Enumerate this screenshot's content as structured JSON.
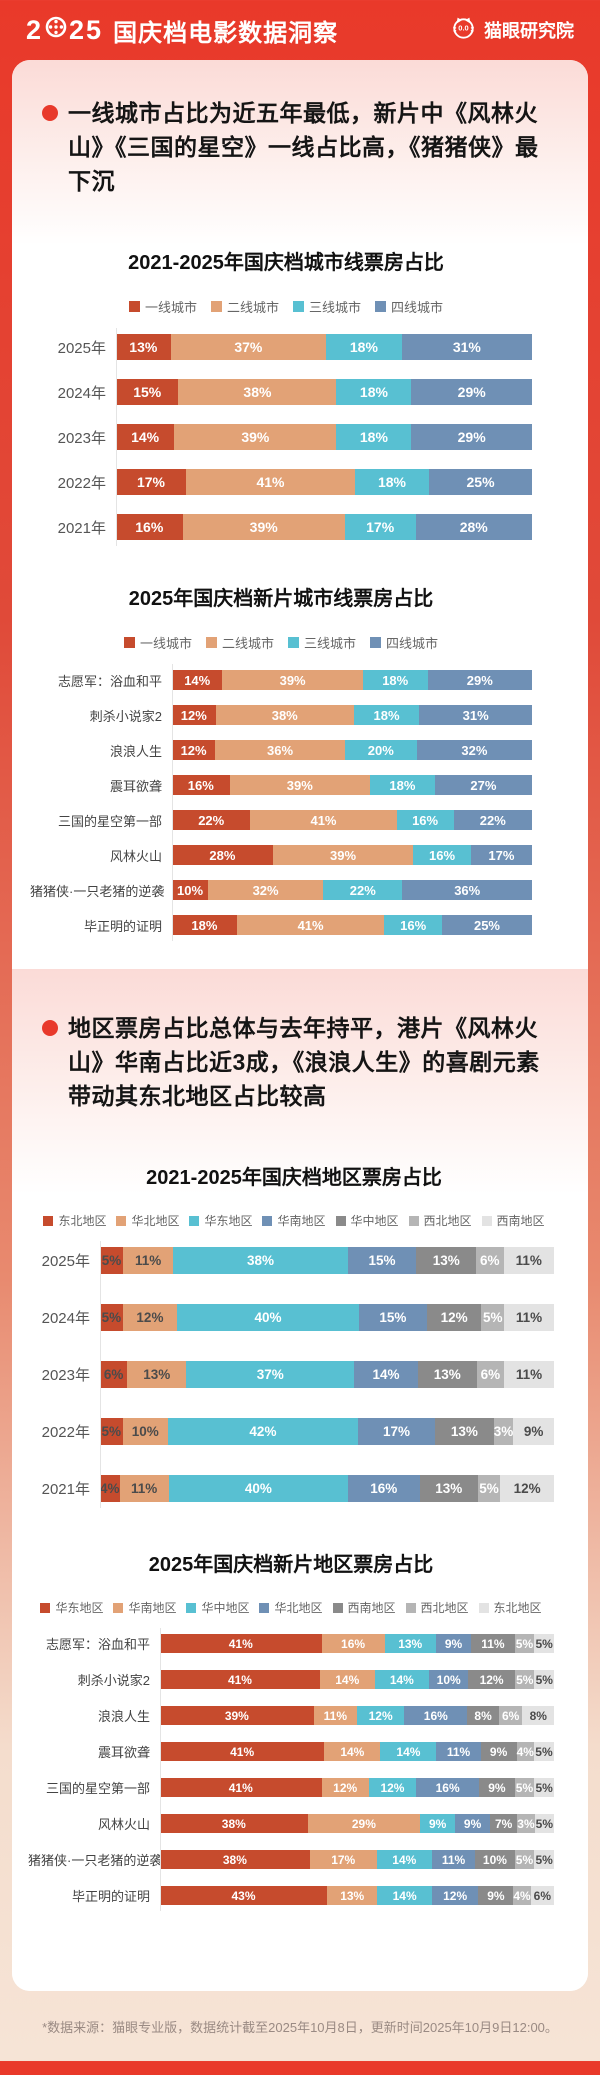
{
  "header": {
    "year_left": "2",
    "year_right": "25",
    "title": "国庆档电影数据洞察",
    "brand": "猫眼研究院",
    "accent_color": "#e9392a"
  },
  "sections": [
    {
      "bullet": "一线城市占比为近五年最低，新片中《风林火山》《三国的星空》一线占比高，《猪猪侠》最下沉"
    },
    {
      "bullet": "地区票房占比总体与去年持平，港片《风林火山》华南占比近3成，《浪浪人生》的喜剧元素带动其东北地区占比较高"
    }
  ],
  "footer": {
    "note": "*数据来源：猫眼专业版，数据统计截至2025年10月8日，更新时间2025年10月9日12:00。"
  },
  "chart_data": [
    {
      "type": "bar",
      "stacked": true,
      "orientation": "horizontal",
      "title": "2021-2025年国庆档城市线票房占比",
      "unit": "%",
      "legend_position": "top",
      "categories": [
        "2025年",
        "2024年",
        "2023年",
        "2022年",
        "2021年"
      ],
      "series": [
        {
          "name": "一线城市",
          "values": [
            13,
            15,
            14,
            17,
            16
          ]
        },
        {
          "name": "二线城市",
          "values": [
            37,
            38,
            39,
            41,
            39
          ]
        },
        {
          "name": "三线城市",
          "values": [
            18,
            18,
            18,
            18,
            17
          ]
        },
        {
          "name": "四线城市",
          "values": [
            31,
            29,
            29,
            25,
            28
          ]
        }
      ],
      "colors": [
        "#c64b2d",
        "#e2a276",
        "#58c0d2",
        "#6f90b5"
      ],
      "label_colors": [
        "#ffffff",
        "#ffffff",
        "#ffffff",
        "#ffffff"
      ]
    },
    {
      "type": "bar",
      "stacked": true,
      "orientation": "horizontal",
      "title": "2025年国庆档新片城市线票房占比",
      "unit": "%",
      "legend_position": "top",
      "categories": [
        "志愿军：浴血和平",
        "刺杀小说家2",
        "浪浪人生",
        "震耳欲聋",
        "三国的星空第一部",
        "风林火山",
        "猪猪侠·一只老猪的逆袭",
        "毕正明的证明"
      ],
      "series": [
        {
          "name": "一线城市",
          "values": [
            14,
            12,
            12,
            16,
            22,
            28,
            10,
            18
          ]
        },
        {
          "name": "二线城市",
          "values": [
            39,
            38,
            36,
            39,
            41,
            39,
            32,
            41
          ]
        },
        {
          "name": "三线城市",
          "values": [
            18,
            18,
            20,
            18,
            16,
            16,
            22,
            16
          ]
        },
        {
          "name": "四线城市",
          "values": [
            29,
            31,
            32,
            27,
            22,
            17,
            36,
            25
          ]
        }
      ],
      "colors": [
        "#c64b2d",
        "#e2a276",
        "#58c0d2",
        "#6f90b5"
      ],
      "label_colors": [
        "#ffffff",
        "#ffffff",
        "#ffffff",
        "#ffffff"
      ]
    },
    {
      "type": "bar",
      "stacked": true,
      "orientation": "horizontal",
      "title": "2021-2025年国庆档地区票房占比",
      "unit": "%",
      "legend_position": "top",
      "categories": [
        "2025年",
        "2024年",
        "2023年",
        "2022年",
        "2021年"
      ],
      "series": [
        {
          "name": "东北地区",
          "values": [
            5,
            5,
            6,
            5,
            4
          ]
        },
        {
          "name": "华北地区",
          "values": [
            11,
            12,
            13,
            10,
            11
          ]
        },
        {
          "name": "华东地区",
          "values": [
            38,
            40,
            37,
            42,
            40
          ]
        },
        {
          "name": "华南地区",
          "values": [
            15,
            15,
            14,
            17,
            16
          ]
        },
        {
          "name": "华中地区",
          "values": [
            13,
            12,
            13,
            13,
            13
          ]
        },
        {
          "name": "西北地区",
          "values": [
            6,
            5,
            6,
            3,
            5
          ]
        },
        {
          "name": "西南地区",
          "values": [
            11,
            11,
            11,
            9,
            12
          ]
        }
      ],
      "colors": [
        "#c64b2d",
        "#e2a276",
        "#58c0d2",
        "#6f90b5",
        "#8a8a8a",
        "#b5b5b5",
        "#e3e3e3"
      ],
      "label_colors": [
        "#4b4b4b",
        "#4b4b4b",
        "#ffffff",
        "#ffffff",
        "#ffffff",
        "#ffffff",
        "#4b4b4b"
      ]
    },
    {
      "type": "bar",
      "stacked": true,
      "orientation": "horizontal",
      "title": "2025年国庆档新片地区票房占比",
      "unit": "%",
      "legend_position": "top",
      "categories": [
        "志愿军：浴血和平",
        "刺杀小说家2",
        "浪浪人生",
        "震耳欲聋",
        "三国的星空第一部",
        "风林火山",
        "猪猪侠·一只老猪的逆袭",
        "毕正明的证明"
      ],
      "series": [
        {
          "name": "华东地区",
          "values": [
            41,
            41,
            39,
            41,
            41,
            38,
            38,
            43
          ]
        },
        {
          "name": "华南地区",
          "values": [
            16,
            14,
            11,
            14,
            12,
            29,
            17,
            13
          ]
        },
        {
          "name": "华中地区",
          "values": [
            13,
            14,
            12,
            14,
            12,
            9,
            14,
            14
          ]
        },
        {
          "name": "华北地区",
          "values": [
            9,
            10,
            16,
            11,
            16,
            9,
            11,
            12
          ]
        },
        {
          "name": "西南地区",
          "values": [
            11,
            12,
            8,
            9,
            9,
            7,
            10,
            9
          ]
        },
        {
          "name": "西北地区",
          "values": [
            5,
            5,
            6,
            4,
            5,
            3,
            5,
            4
          ]
        },
        {
          "name": "东北地区",
          "values": [
            5,
            5,
            8,
            5,
            5,
            5,
            5,
            6
          ]
        }
      ],
      "colors": [
        "#c64b2d",
        "#e2a276",
        "#58c0d2",
        "#6f90b5",
        "#8a8a8a",
        "#b5b5b5",
        "#e3e3e3"
      ],
      "label_colors": [
        "#ffffff",
        "#ffffff",
        "#ffffff",
        "#ffffff",
        "#ffffff",
        "#ffffff",
        "#4b4b4b"
      ]
    }
  ]
}
